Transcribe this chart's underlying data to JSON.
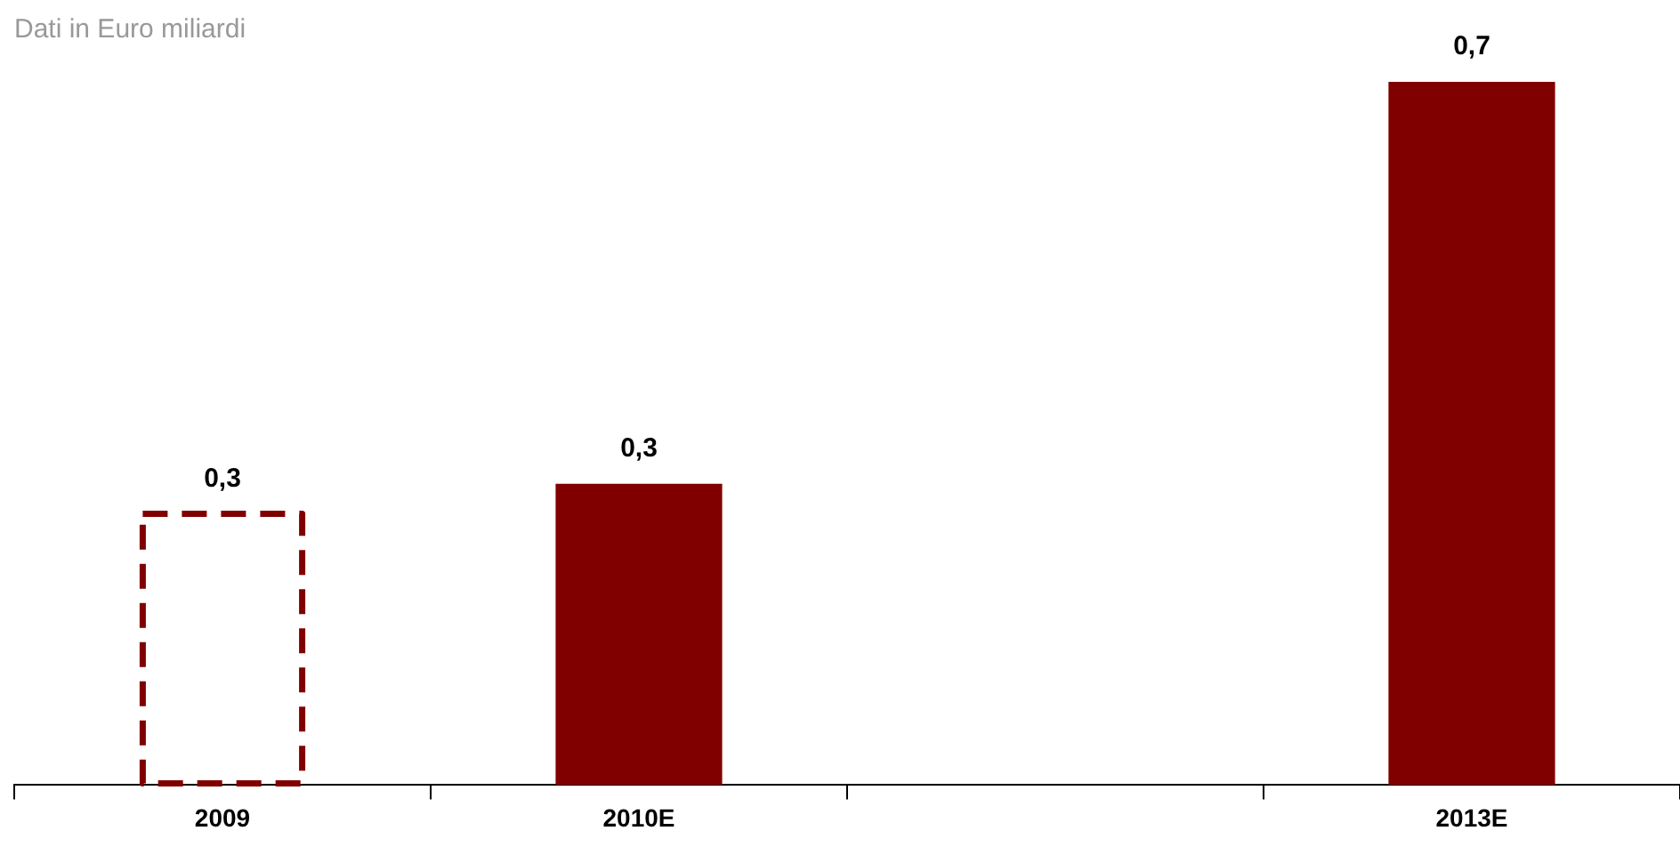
{
  "chart_data": {
    "type": "bar",
    "title": "Dati in Euro miliardi",
    "categories": [
      "2009",
      "2010E",
      null,
      "2013E"
    ],
    "series": [
      {
        "color": "#800000",
        "line_style": "dashed",
        "values": [
          0.27,
          null,
          null,
          null
        ],
        "value_labels": [
          "0,3",
          null,
          null,
          null
        ]
      },
      {
        "color": "#800000",
        "values": [
          null,
          0.3,
          null,
          0.7
        ],
        "value_labels": [
          null,
          "0,3",
          null,
          "0,7"
        ]
      }
    ],
    "grid": false,
    "legend": false
  }
}
